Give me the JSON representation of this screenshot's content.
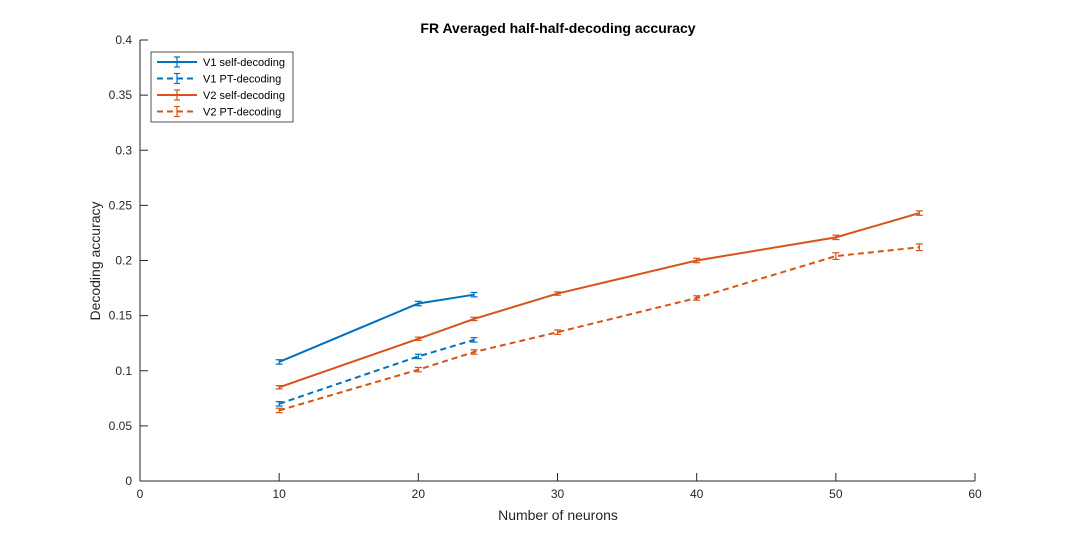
{
  "chart_data": {
    "type": "line",
    "title": "FR Averaged half-half-decoding accuracy",
    "xlabel": "Number of neurons",
    "ylabel": "Decoding accuracy",
    "xlim": [
      0,
      60
    ],
    "ylim": [
      0,
      0.4
    ],
    "xticks": [
      0,
      10,
      20,
      30,
      40,
      50,
      60
    ],
    "yticks": [
      0,
      0.05,
      0.1,
      0.15,
      0.2,
      0.25,
      0.3,
      0.35,
      0.4
    ],
    "xtick_labels": [
      "0",
      "10",
      "20",
      "30",
      "40",
      "50",
      "60"
    ],
    "ytick_labels": [
      "0",
      "0.05",
      "0.1",
      "0.15",
      "0.2",
      "0.25",
      "0.3",
      "0.35",
      "0.4"
    ],
    "grid": false,
    "legend_position": "top-left",
    "series": [
      {
        "name": "V1 self-decoding",
        "color": "#0072BD",
        "dash": "solid",
        "x": [
          10,
          20,
          24
        ],
        "y": [
          0.108,
          0.161,
          0.169
        ],
        "err": [
          0.002,
          0.002,
          0.002
        ]
      },
      {
        "name": "V1 PT-decoding",
        "color": "#0072BD",
        "dash": "dashed",
        "x": [
          10,
          20,
          24
        ],
        "y": [
          0.07,
          0.113,
          0.128
        ],
        "err": [
          0.002,
          0.002,
          0.002
        ]
      },
      {
        "name": "V2 self-decoding",
        "color": "#D95319",
        "dash": "solid",
        "x": [
          10,
          20,
          24,
          30,
          40,
          50,
          56
        ],
        "y": [
          0.085,
          0.129,
          0.147,
          0.17,
          0.2,
          0.221,
          0.243
        ],
        "err": [
          0.0015,
          0.0015,
          0.0015,
          0.0015,
          0.002,
          0.002,
          0.002
        ]
      },
      {
        "name": "V2 PT-decoding",
        "color": "#D95319",
        "dash": "dashed",
        "x": [
          10,
          20,
          24,
          30,
          40,
          50,
          56
        ],
        "y": [
          0.064,
          0.101,
          0.117,
          0.135,
          0.166,
          0.204,
          0.212
        ],
        "err": [
          0.002,
          0.002,
          0.002,
          0.002,
          0.002,
          0.003,
          0.003
        ]
      }
    ]
  }
}
